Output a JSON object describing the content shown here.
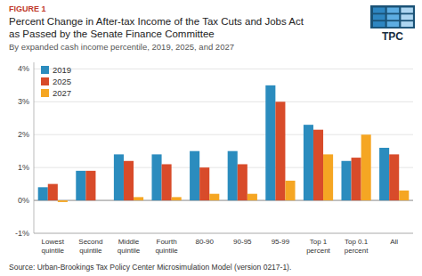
{
  "chart_data": {
    "type": "bar",
    "title": [
      "Percent Change in After-tax Income of the Tax Cuts and Jobs Act",
      "as Passed by the Senate Finance Committee"
    ],
    "subtitle": "By expanded cash income percentile, 2019, 2025, and 2027",
    "annotations": [
      "FIGURE 1",
      "Source: Urban-Brookings Tax Policy Center Microsimulation Model (version 0217-1).",
      "TPC"
    ],
    "categories": [
      "Lowest\nquintile",
      "Second\nquintile",
      "Middle\nquintile",
      "Fourth\nquintile",
      "80-90",
      "90-95",
      "95-99",
      "Top 1\npercent",
      "Top 0.1\npercent",
      "All"
    ],
    "series": [
      {
        "name": "2019",
        "color": "#2b8cbe",
        "values": [
          0.4,
          0.9,
          1.4,
          1.4,
          1.5,
          1.5,
          3.5,
          2.3,
          1.2,
          1.6
        ]
      },
      {
        "name": "2025",
        "color": "#d84b2a",
        "values": [
          0.5,
          0.9,
          1.2,
          1.1,
          1.0,
          1.1,
          3.0,
          2.15,
          1.3,
          1.4
        ]
      },
      {
        "name": "2027",
        "color": "#f5a623",
        "values": [
          -0.05,
          0.0,
          0.1,
          0.1,
          0.2,
          0.2,
          0.6,
          1.4,
          2.0,
          0.3
        ]
      }
    ],
    "ylim": [
      -1,
      4.2
    ],
    "yticks": [
      {
        "value": -1,
        "label": "-1%"
      },
      {
        "value": 0,
        "label": "0%"
      },
      {
        "value": 1,
        "label": "1%"
      },
      {
        "value": 2,
        "label": "2%"
      },
      {
        "value": 3,
        "label": "3%"
      },
      {
        "value": 4,
        "label": "4%"
      }
    ],
    "grid": true,
    "legend": "upper left"
  }
}
